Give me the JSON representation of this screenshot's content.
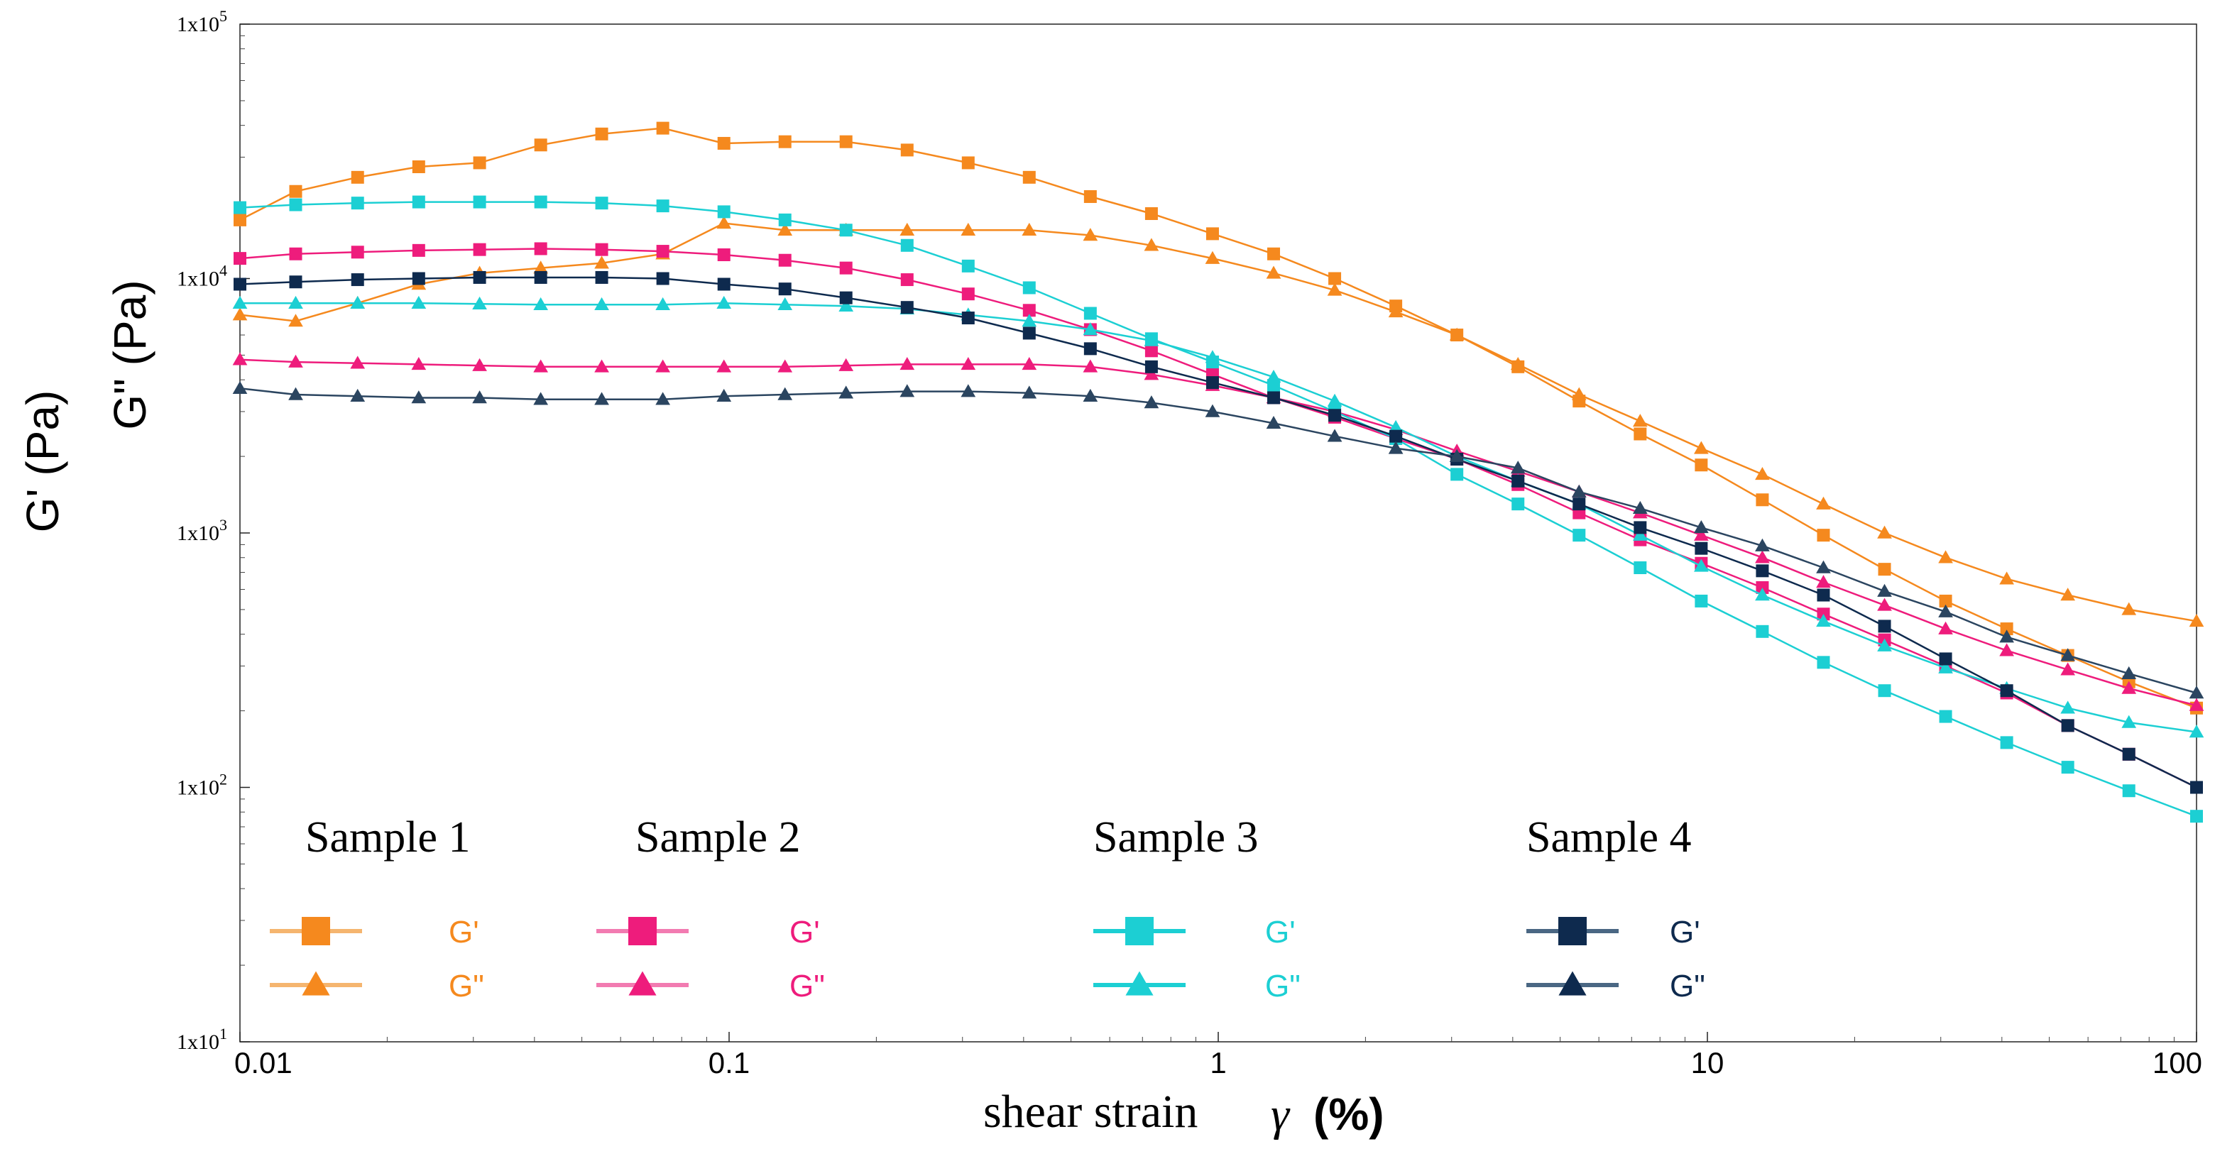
{
  "chart_data": {
    "type": "line",
    "xscale": "log",
    "yscale": "log",
    "xlim": [
      0.01,
      100
    ],
    "ylim": [
      10,
      100000
    ],
    "xlabel_text": "shear strain",
    "xlabel_symbol": "γ",
    "xlabel_unit": "(%)",
    "ylabel_gp": "G' (Pa)",
    "ylabel_gpp": "G\" (Pa)",
    "x_ticks": [
      {
        "value": 0.01,
        "label": "0.01"
      },
      {
        "value": 0.1,
        "label": "0.1"
      },
      {
        "value": 1,
        "label": "1"
      },
      {
        "value": 10,
        "label": "10"
      },
      {
        "value": 100,
        "label": "100"
      }
    ],
    "y_ticks": [
      {
        "value": 10,
        "label": "1x10",
        "exp": "1"
      },
      {
        "value": 100,
        "label": "1x10",
        "exp": "2"
      },
      {
        "value": 1000,
        "label": "1x10",
        "exp": "3"
      },
      {
        "value": 10000,
        "label": "1x10",
        "exp": "4"
      },
      {
        "value": 100000,
        "label": "1x10",
        "exp": "5"
      }
    ],
    "x": [
      0.01,
      0.013,
      0.0174,
      0.0232,
      0.0309,
      0.0412,
      0.0549,
      0.0732,
      0.0976,
      0.1301,
      0.1734,
      0.2312,
      0.3082,
      0.4108,
      0.5477,
      0.7302,
      0.9735,
      1.2979,
      1.7303,
      2.3068,
      3.0755,
      4.1002,
      5.4663,
      7.2875,
      9.7156,
      12.953,
      17.269,
      23.023,
      30.693,
      40.921,
      54.555,
      72.733,
      100
    ],
    "series": [
      {
        "name": "Sample 1 G'",
        "sample": 1,
        "modulus": "G'",
        "color": "#F5891E",
        "marker": "square",
        "values": [
          17000,
          22000,
          25000,
          27500,
          28500,
          33500,
          37000,
          39000,
          34000,
          34500,
          34500,
          32000,
          28500,
          25000,
          21000,
          18000,
          15000,
          12500,
          10000,
          7800,
          6000,
          4500,
          3300,
          2450,
          1850,
          1350,
          980,
          720,
          540,
          420,
          330,
          260,
          205
        ]
      },
      {
        "name": "Sample 1 G\"",
        "sample": 1,
        "modulus": "G\"",
        "color": "#F5891E",
        "marker": "triangle",
        "values": [
          7200,
          6800,
          8000,
          9500,
          10500,
          11000,
          11500,
          12500,
          16500,
          15500,
          15500,
          15500,
          15500,
          15500,
          14800,
          13500,
          12000,
          10500,
          9000,
          7400,
          6000,
          4600,
          3500,
          2750,
          2150,
          1700,
          1300,
          1000,
          800,
          660,
          570,
          500,
          450
        ]
      },
      {
        "name": "Sample 2 G'",
        "sample": 2,
        "modulus": "G'",
        "color": "#EE1C7C",
        "marker": "square",
        "values": [
          12000,
          12500,
          12700,
          12900,
          13000,
          13100,
          13000,
          12800,
          12400,
          11800,
          11000,
          9900,
          8700,
          7500,
          6300,
          5200,
          4200,
          3400,
          2850,
          2350,
          1950,
          1550,
          1200,
          940,
          760,
          610,
          480,
          380,
          300,
          235,
          175,
          135,
          100
        ]
      },
      {
        "name": "Sample 2 G\"",
        "sample": 2,
        "modulus": "G\"",
        "color": "#EE1C7C",
        "marker": "triangle",
        "values": [
          4800,
          4700,
          4650,
          4600,
          4550,
          4500,
          4500,
          4500,
          4500,
          4500,
          4550,
          4600,
          4600,
          4600,
          4500,
          4200,
          3800,
          3400,
          3000,
          2550,
          2100,
          1750,
          1450,
          1200,
          980,
          800,
          640,
          520,
          420,
          345,
          290,
          245,
          210
        ]
      },
      {
        "name": "Sample 3 G'",
        "sample": 3,
        "modulus": "G'",
        "color": "#1CCFD3",
        "marker": "square",
        "values": [
          19000,
          19500,
          19800,
          20000,
          20000,
          20000,
          19800,
          19300,
          18300,
          17000,
          15500,
          13500,
          11200,
          9200,
          7300,
          5800,
          4700,
          3800,
          3000,
          2350,
          1700,
          1300,
          980,
          730,
          540,
          410,
          310,
          240,
          190,
          150,
          120,
          97,
          77
        ]
      },
      {
        "name": "Sample 3 G\"",
        "sample": 3,
        "modulus": "G\"",
        "color": "#1CCFD3",
        "marker": "triangle",
        "values": [
          8000,
          8000,
          8000,
          8000,
          7950,
          7900,
          7900,
          7900,
          8000,
          7900,
          7800,
          7600,
          7200,
          6800,
          6300,
          5700,
          4900,
          4100,
          3300,
          2600,
          2000,
          1600,
          1300,
          980,
          740,
          570,
          450,
          360,
          295,
          245,
          205,
          180,
          165
        ]
      },
      {
        "name": "Sample 4 G'",
        "sample": 4,
        "modulus": "G'",
        "color": "#0E2A4E",
        "marker": "square",
        "values": [
          9500,
          9700,
          9900,
          10000,
          10100,
          10100,
          10100,
          10000,
          9500,
          9100,
          8400,
          7700,
          7000,
          6100,
          5300,
          4500,
          3900,
          3400,
          2900,
          2400,
          1950,
          1600,
          1300,
          1050,
          870,
          710,
          570,
          430,
          320,
          240,
          175,
          135,
          100
        ]
      },
      {
        "name": "Sample 4 G\"",
        "sample": 4,
        "modulus": "G\"",
        "color": "#2B4560",
        "marker": "triangle",
        "values": [
          3700,
          3500,
          3450,
          3400,
          3400,
          3350,
          3350,
          3350,
          3450,
          3500,
          3550,
          3600,
          3600,
          3550,
          3450,
          3250,
          3000,
          2700,
          2400,
          2150,
          2000,
          1800,
          1450,
          1250,
          1050,
          890,
          730,
          590,
          490,
          390,
          330,
          280,
          235
        ]
      }
    ],
    "legend": {
      "placement": "bottom-left",
      "groups": [
        {
          "title": "Sample 1",
          "color": "#F5891E",
          "line_color": "#F5B56F",
          "gp_label": "G'",
          "gpp_label": "G\""
        },
        {
          "title": "Sample 2",
          "color": "#EE1C7C",
          "line_color": "#F27BB1",
          "gp_label": "G'",
          "gpp_label": "G\""
        },
        {
          "title": "Sample 3",
          "color": "#1CCFD3",
          "line_color": "#1CCFD3",
          "gp_label": "G'",
          "gpp_label": "G\""
        },
        {
          "title": "Sample 4",
          "color": "#0E2A4E",
          "line_color": "#4A6783",
          "gp_label": "G'",
          "gpp_label": "G\""
        }
      ]
    }
  }
}
